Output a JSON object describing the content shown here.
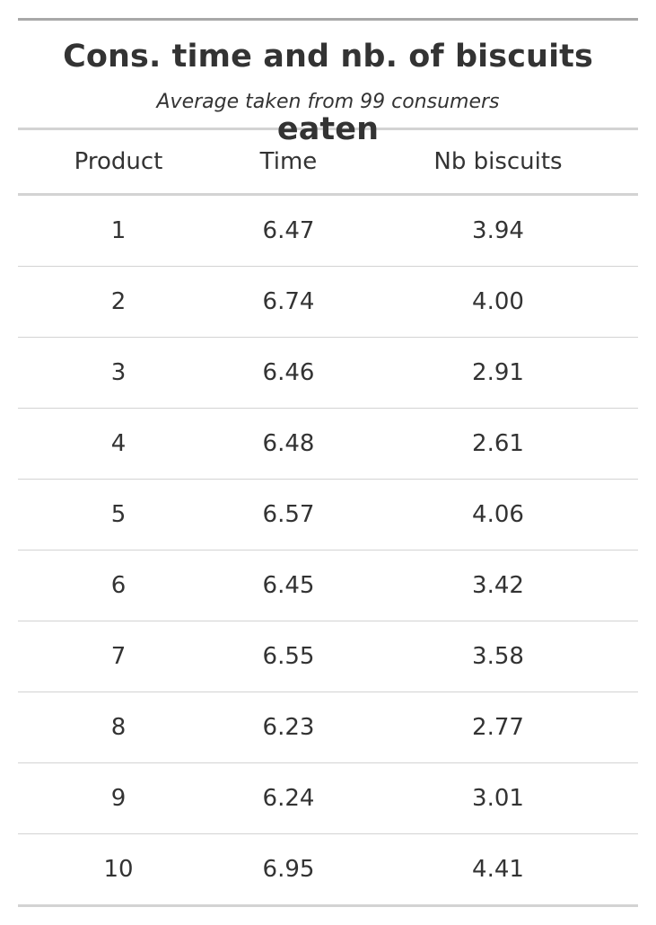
{
  "table": {
    "title": "Cons. time and nb. of biscuits eaten",
    "subtitle": "Average taken from 99 consumers",
    "columns": [
      "Product",
      "Time",
      "Nb biscuits"
    ],
    "rows": [
      {
        "product": "1",
        "time": "6.47",
        "nb_biscuits": "3.94"
      },
      {
        "product": "2",
        "time": "6.74",
        "nb_biscuits": "4.00"
      },
      {
        "product": "3",
        "time": "6.46",
        "nb_biscuits": "2.91"
      },
      {
        "product": "4",
        "time": "6.48",
        "nb_biscuits": "2.61"
      },
      {
        "product": "5",
        "time": "6.57",
        "nb_biscuits": "4.06"
      },
      {
        "product": "6",
        "time": "6.45",
        "nb_biscuits": "3.42"
      },
      {
        "product": "7",
        "time": "6.55",
        "nb_biscuits": "3.58"
      },
      {
        "product": "8",
        "time": "6.23",
        "nb_biscuits": "2.77"
      },
      {
        "product": "9",
        "time": "6.24",
        "nb_biscuits": "3.01"
      },
      {
        "product": "10",
        "time": "6.95",
        "nb_biscuits": "4.41"
      }
    ]
  },
  "colors": {
    "text": "#333333",
    "top_rule": "#a8a8a8",
    "rules": "#d3d3d3"
  }
}
